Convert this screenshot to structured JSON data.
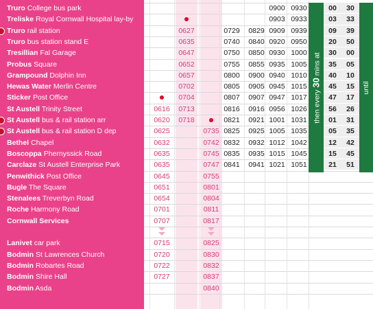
{
  "stops": [
    {
      "town": "Truro",
      "place": "College bus park",
      "rail": false
    },
    {
      "town": "Treliske",
      "place": "Royal Cornwall Hospital lay-by",
      "rail": false
    },
    {
      "town": "Truro",
      "place": "rail station",
      "rail": true
    },
    {
      "town": "Truro",
      "place": "bus station stand E",
      "rail": false
    },
    {
      "town": "Tresillian",
      "place": "Fal Garage",
      "rail": false
    },
    {
      "town": "Probus",
      "place": "Square",
      "rail": false
    },
    {
      "town": "Grampound",
      "place": "Dolphin Inn",
      "rail": false
    },
    {
      "town": "Hewas Water",
      "place": "Merlin Centre",
      "rail": false
    },
    {
      "town": "Sticker",
      "place": "Post Office",
      "rail": false
    },
    {
      "town": "St Austell",
      "place": "Trinity Street",
      "rail": false
    },
    {
      "town": "St Austell",
      "place": "bus & rail station arr",
      "rail": true
    },
    {
      "town": "St Austell",
      "place": "bus & rail station D dep",
      "rail": true
    },
    {
      "town": "Bethel",
      "place": "Chapel",
      "rail": false
    },
    {
      "town": "Boscoppa",
      "place": "Phernyssick Road",
      "rail": false
    },
    {
      "town": "Carclaze",
      "place": "St Austell Enterprise Park",
      "rail": false
    },
    {
      "town": "Penwithick",
      "place": "Post Office",
      "rail": false
    },
    {
      "town": "Bugle",
      "place": "The Square",
      "rail": false
    },
    {
      "town": "Stenalees",
      "place": "Treverbyn Road",
      "rail": false
    },
    {
      "town": "Roche",
      "place": "Harmony Road",
      "rail": false
    },
    {
      "town": "Cornwall Services",
      "place": "",
      "rail": false
    },
    {
      "town": "",
      "place": "",
      "rail": false
    },
    {
      "town": "Lanivet",
      "place": "car park",
      "rail": false
    },
    {
      "town": "Bodmin",
      "place": "St Lawrences Church",
      "rail": false
    },
    {
      "town": "Bodmin",
      "place": "Robartes Road",
      "rail": false
    },
    {
      "town": "Bodmin",
      "place": "Shire Hall",
      "rail": false
    },
    {
      "town": "Bodmin",
      "place": "Asda",
      "rail": false
    }
  ],
  "columns": [
    {
      "pink": false,
      "times": [
        "",
        "",
        "",
        "",
        "",
        "",
        "",
        "",
        "dot",
        "0616",
        "0620",
        "0625",
        "0632",
        "0635",
        "0635",
        "0645",
        "0651",
        "0654",
        "0701",
        "0707",
        "arrow",
        "0715",
        "0720",
        "0722",
        "0727",
        ""
      ]
    },
    {
      "pink": true,
      "times": [
        "",
        "dot",
        "0627",
        "0635",
        "0647",
        "0652",
        "0657",
        "0702",
        "0704",
        "0713",
        "0718",
        "",
        "",
        "",
        "",
        "",
        "",
        "",
        "",
        "",
        "",
        "",
        "",
        "",
        "",
        ""
      ]
    },
    {
      "pink": true,
      "times": [
        "",
        "",
        "",
        "",
        "",
        "",
        "",
        "",
        "",
        "",
        "dot",
        "0735",
        "0742",
        "0745",
        "0747",
        "0755",
        "0801",
        "0804",
        "0811",
        "0817",
        "arrow",
        "0825",
        "0830",
        "0832",
        "0837",
        "0840"
      ]
    },
    {
      "pink": false,
      "times": [
        "",
        "",
        "0729",
        "0740",
        "0750",
        "0755",
        "0800",
        "0805",
        "0807",
        "0816",
        "0821",
        "0825",
        "0832",
        "0835",
        "0841",
        "",
        "",
        "",
        "",
        "",
        "",
        "",
        "",
        "",
        "",
        ""
      ]
    },
    {
      "pink": false,
      "times": [
        "",
        "",
        "0829",
        "0840",
        "0850",
        "0855",
        "0900",
        "0905",
        "0907",
        "0916",
        "0921",
        "0925",
        "0932",
        "0935",
        "0941",
        "",
        "",
        "",
        "",
        "",
        "",
        "",
        "",
        "",
        "",
        ""
      ]
    },
    {
      "pink": false,
      "times": [
        "0900",
        "0903",
        "0909",
        "0920",
        "0930",
        "0935",
        "0940",
        "0945",
        "0947",
        "0956",
        "1001",
        "1005",
        "1012",
        "1015",
        "1021",
        "",
        "",
        "",
        "",
        "",
        "",
        "",
        "",
        "",
        "",
        ""
      ]
    },
    {
      "pink": false,
      "times": [
        "0930",
        "0933",
        "0939",
        "0950",
        "1000",
        "1005",
        "1010",
        "1015",
        "1017",
        "1026",
        "1031",
        "1035",
        "1042",
        "1045",
        "1051",
        "",
        "",
        "",
        "",
        "",
        "",
        "",
        "",
        "",
        "",
        ""
      ]
    }
  ],
  "frequency_text_a": "then every ",
  "frequency_text_b": "30",
  "frequency_text_c": " mins at",
  "minutes": [
    [
      "00",
      "30"
    ],
    [
      "03",
      "33"
    ],
    [
      "09",
      "39"
    ],
    [
      "20",
      "50"
    ],
    [
      "30",
      "00"
    ],
    [
      "35",
      "05"
    ],
    [
      "40",
      "10"
    ],
    [
      "45",
      "15"
    ],
    [
      "47",
      "17"
    ],
    [
      "56",
      "26"
    ],
    [
      "01",
      "31"
    ],
    [
      "05",
      "35"
    ],
    [
      "12",
      "42"
    ],
    [
      "15",
      "45"
    ],
    [
      "21",
      "51"
    ]
  ],
  "until_text": "until",
  "colors": {
    "pink": "#e9428a",
    "green": "#1e7a3f",
    "red_dot": "#e4002b"
  }
}
